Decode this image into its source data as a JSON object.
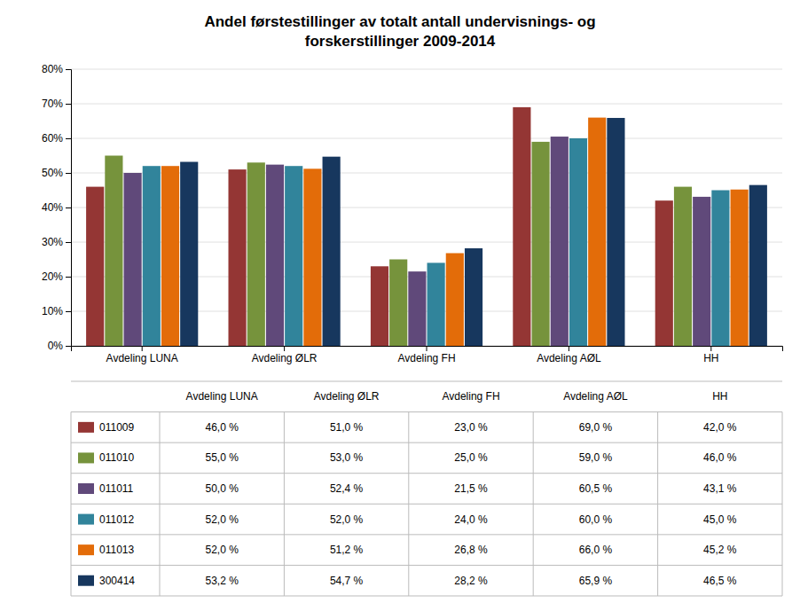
{
  "chart_data": {
    "type": "bar",
    "title": "Andel førstestillinger av totalt antall undervisnings- og\nforskerstillinger 2009-2014",
    "categories": [
      "Avdeling LUNA",
      "Avdeling ØLR",
      "Avdeling FH",
      "Avdeling AØL",
      "HH"
    ],
    "series": [
      {
        "name": "011009",
        "color": "#943634",
        "values": [
          0.46,
          0.51,
          0.23,
          0.69,
          0.42
        ],
        "value_labels": [
          "46,0 %",
          "51,0 %",
          "23,0 %",
          "69,0 %",
          "42,0 %"
        ]
      },
      {
        "name": "011010",
        "color": "#76933c",
        "values": [
          0.55,
          0.53,
          0.25,
          0.59,
          0.46
        ],
        "value_labels": [
          "55,0 %",
          "53,0 %",
          "25,0 %",
          "59,0 %",
          "46,0 %"
        ]
      },
      {
        "name": "011011",
        "color": "#60497a",
        "values": [
          0.5,
          0.524,
          0.215,
          0.605,
          0.431
        ],
        "value_labels": [
          "50,0 %",
          "52,4 %",
          "21,5 %",
          "60,5 %",
          "43,1 %"
        ]
      },
      {
        "name": "011012",
        "color": "#31849b",
        "values": [
          0.52,
          0.52,
          0.24,
          0.6,
          0.45
        ],
        "value_labels": [
          "52,0 %",
          "52,0 %",
          "24,0 %",
          "60,0 %",
          "45,0 %"
        ]
      },
      {
        "name": "011013",
        "color": "#e36c09",
        "values": [
          0.52,
          0.512,
          0.268,
          0.66,
          0.452
        ],
        "value_labels": [
          "52,0 %",
          "51,2 %",
          "26,8 %",
          "66,0 %",
          "45,2 %"
        ]
      },
      {
        "name": "300414",
        "color": "#17375e",
        "values": [
          0.532,
          0.547,
          0.282,
          0.659,
          0.465
        ],
        "value_labels": [
          "53,2 %",
          "54,7 %",
          "28,2 %",
          "65,9 %",
          "46,5 %"
        ]
      }
    ],
    "ylim": [
      0,
      0.8
    ],
    "yticks": [
      {
        "value": 0.0,
        "label": "0%"
      },
      {
        "value": 0.1,
        "label": "10%"
      },
      {
        "value": 0.2,
        "label": "20%"
      },
      {
        "value": 0.3,
        "label": "30%"
      },
      {
        "value": 0.4,
        "label": "40%"
      },
      {
        "value": 0.5,
        "label": "50%"
      },
      {
        "value": 0.6,
        "label": "60%"
      },
      {
        "value": 0.7,
        "label": "70%"
      },
      {
        "value": 0.8,
        "label": "80%"
      }
    ],
    "grid": true
  }
}
